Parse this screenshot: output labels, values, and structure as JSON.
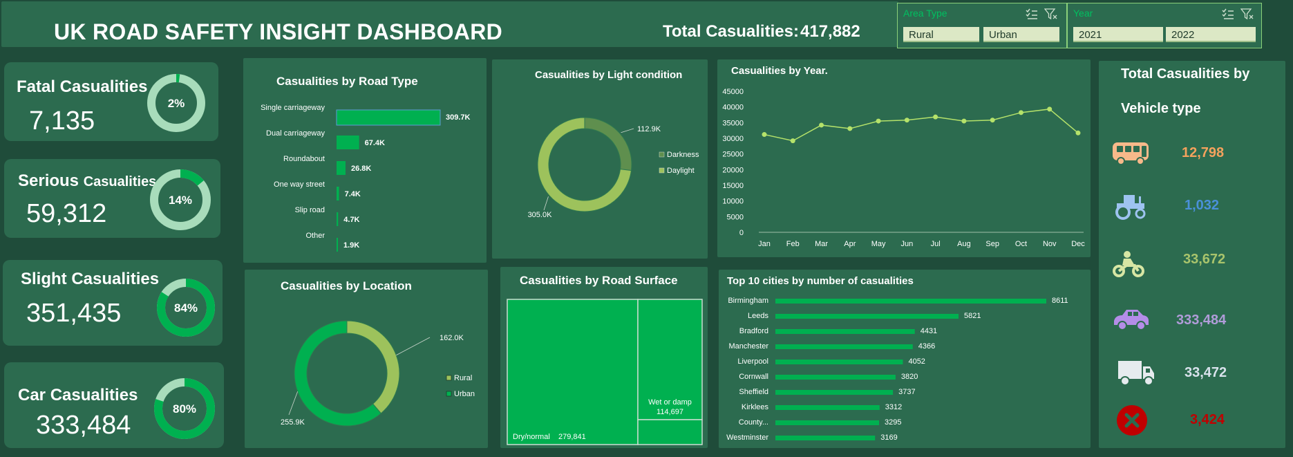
{
  "header": {
    "title": "UK ROAD SAFETY INSIGHT DASHBOARD",
    "total_label": "Total Casualities:",
    "total_value": "417,882"
  },
  "slicers": {
    "area": {
      "title": "Area Type",
      "options": [
        "Rural",
        "Urban"
      ]
    },
    "year": {
      "title": "Year",
      "options": [
        "2021",
        "2022"
      ]
    }
  },
  "kpis": {
    "fatal": {
      "label": "Fatal Casualities",
      "value": "7,135",
      "pct_label": "2%",
      "pct": 0.02
    },
    "serious": {
      "label_big": "Serious",
      "label_small": "Casualities",
      "value": "59,312",
      "pct_label": "14%",
      "pct": 0.14
    },
    "slight": {
      "label": "Slight Casualities",
      "value": "351,435",
      "pct_label": "84%",
      "pct": 0.84
    },
    "car": {
      "label": "Car Casualities",
      "value": "333,484",
      "pct_label": "80%",
      "pct": 0.8
    }
  },
  "vehicles": {
    "title_line1": "Total Casualities by",
    "title_line2": "Vehicle type",
    "items": [
      {
        "icon": "bus-icon",
        "value": "12,798",
        "color": "#f5a25d"
      },
      {
        "icon": "tractor-icon",
        "value": "1,032",
        "color": "#4a90d9"
      },
      {
        "icon": "motorcycle-icon",
        "value": "33,672",
        "color": "#a9c46c"
      },
      {
        "icon": "car-icon",
        "value": "333,484",
        "color": "#b19cd9"
      },
      {
        "icon": "van-icon",
        "value": "33,472",
        "color": "#d9e2ec"
      },
      {
        "icon": "other-icon",
        "value": "3,424",
        "color": "#c00000"
      }
    ]
  },
  "chart_data": [
    {
      "type": "bar",
      "title": "Casualities by Road Type",
      "categories": [
        "Single carriageway",
        "Dual carriageway",
        "Roundabout",
        "One way street",
        "Slip road",
        "Other"
      ],
      "values": [
        309.7,
        67.4,
        26.8,
        7.4,
        4.7,
        1.9
      ],
      "labels": [
        "309.7K",
        "67.4K",
        "26.8K",
        "7.4K",
        "4.7K",
        "1.9K"
      ],
      "color": "#00b050"
    },
    {
      "type": "pie",
      "title": "Casualities by Light condition",
      "categories": [
        "Darkness",
        "Daylight"
      ],
      "values": [
        112.9,
        305.0
      ],
      "labels": [
        "112.9K",
        "305.0K"
      ],
      "colors": [
        "#5f8f4e",
        "#9dc25c"
      ],
      "legend": "right"
    },
    {
      "type": "line",
      "title": "Casualities by Year.",
      "x": [
        "Jan",
        "Feb",
        "Mar",
        "Apr",
        "May",
        "Jun",
        "Jul",
        "Aug",
        "Sep",
        "Oct",
        "Nov",
        "Dec"
      ],
      "values": [
        31200,
        29200,
        34200,
        33100,
        35500,
        35800,
        36800,
        35500,
        35800,
        38200,
        39300,
        31700
      ],
      "ylim": [
        0,
        45000
      ],
      "yticks": [
        "0",
        "5000",
        "10000",
        "15000",
        "20000",
        "25000",
        "30000",
        "35000",
        "40000",
        "45000"
      ],
      "color": "#b5e26a"
    },
    {
      "type": "pie",
      "title": "Casualities by Location",
      "categories": [
        "Rural",
        "Urban"
      ],
      "values": [
        162.0,
        255.9
      ],
      "labels": [
        "162.0K",
        "255.9K"
      ],
      "colors": [
        "#9dc25c",
        "#00b050"
      ],
      "legend": "right"
    },
    {
      "type": "heatmap",
      "title": "Casualities by Road Surface",
      "categories": [
        "Dry/normal",
        "Wet or damp"
      ],
      "values": [
        279841,
        114697
      ],
      "labels": [
        "279,841",
        "114,697"
      ],
      "color": "#00b050"
    },
    {
      "type": "bar",
      "title": "Top 10 cities by number of casualities",
      "categories": [
        "Birmingham",
        "Leeds",
        "Bradford",
        "Manchester",
        "Liverpool",
        "Cornwall",
        "Sheffield",
        "Kirklees",
        "County...",
        "Westminster"
      ],
      "values": [
        8611,
        5821,
        4431,
        4366,
        4052,
        3820,
        3737,
        3312,
        3295,
        3169
      ],
      "color": "#00b050"
    }
  ]
}
